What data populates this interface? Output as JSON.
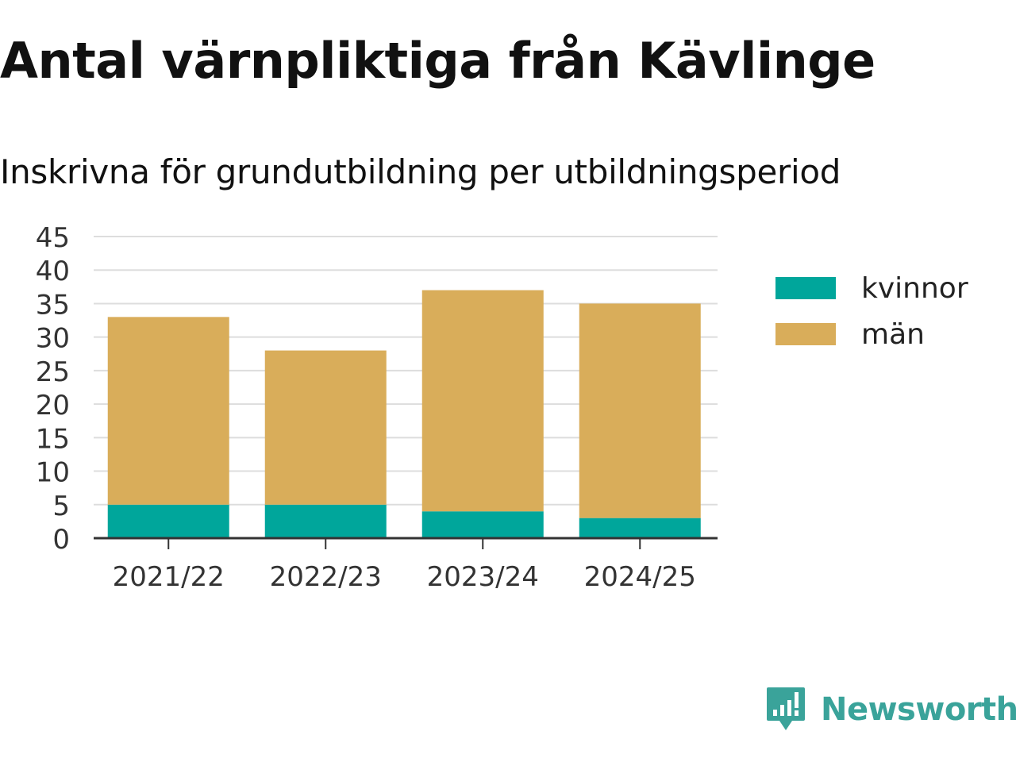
{
  "header": {
    "title": "Antal värnpliktiga från Kävlinge",
    "subtitle": "Inskrivna för grundutbildning per utbildningsperiod"
  },
  "chart_data": {
    "type": "bar",
    "stacked": true,
    "categories": [
      "2021/22",
      "2022/23",
      "2023/24",
      "2024/25"
    ],
    "series": [
      {
        "name": "kvinnor",
        "color": "#00a69b",
        "values": [
          5,
          5,
          4,
          3
        ]
      },
      {
        "name": "män",
        "color": "#d9ad5a",
        "values": [
          28,
          23,
          33,
          32
        ]
      }
    ],
    "ylim": [
      0,
      45
    ],
    "yticks": [
      "0",
      "5",
      "10",
      "15",
      "20",
      "25",
      "30",
      "35",
      "40",
      "45"
    ],
    "grid": true,
    "legend_position": "right"
  },
  "brand": {
    "name": "Newsworthy",
    "color": "#3aa39a",
    "icon": "newsworthy-logo-icon"
  }
}
